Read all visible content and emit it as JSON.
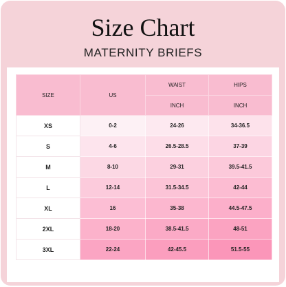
{
  "header": {
    "title": "Size Chart",
    "subtitle": "MATERNITY BRIEFS"
  },
  "table": {
    "columns": [
      "SIZE",
      "US",
      "WAIST",
      "HIPS"
    ],
    "units": [
      "INCH",
      "INCH"
    ],
    "rows": [
      [
        "XS",
        "0-2",
        "24-26",
        "34-36.5"
      ],
      [
        "S",
        "4-6",
        "26.5-28.5",
        "37-39"
      ],
      [
        "M",
        "8-10",
        "29-31",
        "39.5-41.5"
      ],
      [
        "L",
        "12-14",
        "31.5-34.5",
        "42-44"
      ],
      [
        "XL",
        "16",
        "35-38",
        "44.5-47.5"
      ],
      [
        "2XL",
        "18-20",
        "38.5-41.5",
        "48-51"
      ],
      [
        "3XL",
        "22-24",
        "42-45.5",
        "51.5-55"
      ]
    ]
  }
}
